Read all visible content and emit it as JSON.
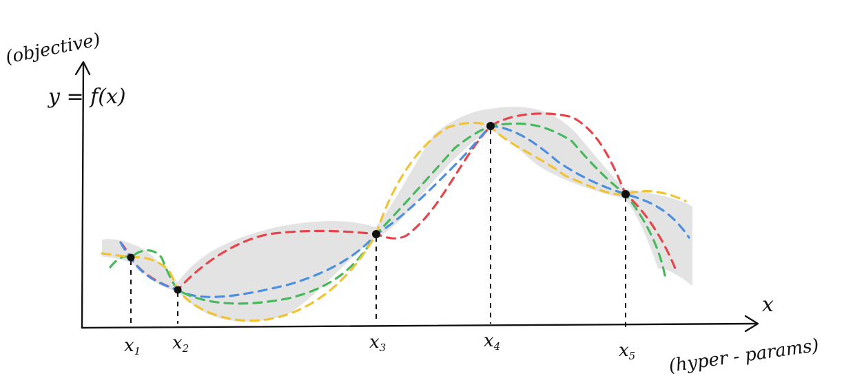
{
  "labels": {
    "y_axis_paren": "(objective)",
    "y_axis_eq": "y = f(x)",
    "x_axis_var": "x",
    "x_axis_paren": "(hyper - params)"
  },
  "points": [
    {
      "name": "x",
      "sub": "1"
    },
    {
      "name": "x",
      "sub": "2"
    },
    {
      "name": "x",
      "sub": "3"
    },
    {
      "name": "x",
      "sub": "4"
    },
    {
      "name": "x",
      "sub": "5"
    }
  ],
  "colors": {
    "axis": "#111111",
    "uncertainty_band": "#d9d9d9",
    "sample_red": "#e8434a",
    "sample_blue": "#4a8fe0",
    "sample_green": "#48b85c",
    "sample_yellow": "#f1c232",
    "observation_dot": "#111111"
  }
}
